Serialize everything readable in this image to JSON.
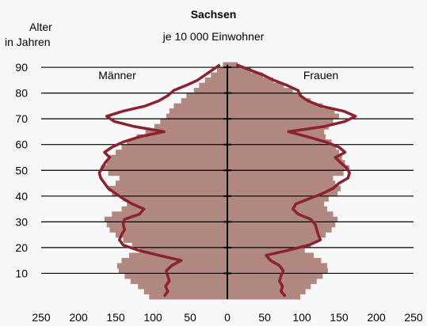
{
  "chart_data": {
    "type": "bar",
    "title": "Sachsen",
    "subtitle": "je 10 000 Einwohner",
    "ylabel_line1": "Alter",
    "ylabel_line2": "in Jahren",
    "left_label": "Männer",
    "right_label": "Frauen",
    "y_ticks": [
      10,
      20,
      30,
      40,
      50,
      60,
      70,
      80,
      90
    ],
    "x_ticks_left": [
      250,
      200,
      150,
      100,
      50,
      0
    ],
    "x_ticks_right": [
      50,
      100,
      150,
      200,
      250
    ],
    "xlim": [
      -250,
      250
    ],
    "ylim": [
      0,
      91
    ],
    "colors": {
      "bars": "#b08880",
      "line": "#8b2230",
      "background": "#f8f8f8",
      "axis": "#000000"
    },
    "series": [
      {
        "side": "male_bars",
        "age": [
          0,
          2,
          4,
          6,
          8,
          10,
          12,
          14,
          16,
          18,
          20,
          22,
          24,
          26,
          28,
          30,
          32,
          34,
          36,
          38,
          40,
          42,
          44,
          46,
          48,
          50,
          52,
          54,
          56,
          58,
          60,
          62,
          64,
          66,
          68,
          70,
          72,
          74,
          76,
          78,
          80,
          82,
          84,
          86,
          88,
          90
        ],
        "values": [
          105,
          112,
          120,
          130,
          138,
          146,
          148,
          142,
          132,
          118,
          128,
          140,
          150,
          158,
          162,
          165,
          155,
          142,
          135,
          140,
          155,
          160,
          150,
          145,
          160,
          170,
          162,
          158,
          150,
          142,
          135,
          122,
          110,
          98,
          90,
          82,
          78,
          72,
          62,
          55,
          45,
          38,
          30,
          22,
          14,
          6
        ]
      },
      {
        "side": "female_bars",
        "age": [
          0,
          2,
          4,
          6,
          8,
          10,
          12,
          14,
          16,
          18,
          20,
          22,
          24,
          26,
          28,
          30,
          32,
          34,
          36,
          38,
          40,
          42,
          44,
          46,
          48,
          50,
          52,
          54,
          56,
          58,
          60,
          62,
          64,
          66,
          68,
          70,
          72,
          74,
          76,
          78,
          80,
          82,
          84,
          86,
          88,
          90
        ],
        "values": [
          98,
          105,
          112,
          120,
          128,
          135,
          134,
          126,
          116,
          104,
          112,
          122,
          132,
          140,
          145,
          148,
          142,
          134,
          130,
          136,
          148,
          152,
          145,
          142,
          156,
          164,
          158,
          154,
          150,
          146,
          140,
          132,
          130,
          136,
          142,
          150,
          144,
          128,
          112,
          100,
          88,
          76,
          62,
          48,
          32,
          14
        ]
      },
      {
        "side": "male_line",
        "age": [
          0,
          2,
          4,
          6,
          8,
          10,
          12,
          14,
          16,
          18,
          20,
          22,
          24,
          26,
          28,
          30,
          32,
          34,
          36,
          38,
          40,
          42,
          44,
          46,
          48,
          50,
          52,
          54,
          56,
          58,
          60,
          62,
          64,
          66,
          68,
          70,
          72,
          74,
          76,
          78,
          80,
          82,
          84,
          86,
          88,
          90
        ],
        "values": [
          85,
          80,
          83,
          78,
          80,
          82,
          75,
          62,
          92,
          120,
          140,
          145,
          142,
          138,
          140,
          138,
          118,
          112,
          128,
          140,
          150,
          160,
          165,
          170,
          172,
          168,
          164,
          158,
          165,
          155,
          140,
          118,
          85,
          125,
          152,
          162,
          140,
          110,
          92,
          80,
          72,
          55,
          40,
          30,
          20,
          10
        ]
      },
      {
        "side": "female_line",
        "age": [
          0,
          2,
          4,
          6,
          8,
          10,
          12,
          14,
          16,
          18,
          20,
          22,
          24,
          26,
          28,
          30,
          32,
          34,
          36,
          38,
          40,
          42,
          44,
          46,
          48,
          50,
          52,
          54,
          56,
          58,
          60,
          62,
          64,
          66,
          68,
          70,
          72,
          74,
          76,
          78,
          80,
          82,
          84,
          86,
          88,
          90
        ],
        "values": [
          78,
          72,
          74,
          70,
          72,
          75,
          70,
          58,
          52,
          82,
          110,
          125,
          122,
          120,
          118,
          112,
          95,
          88,
          92,
          110,
          128,
          142,
          150,
          162,
          164,
          160,
          152,
          145,
          158,
          150,
          132,
          108,
          82,
          130,
          158,
          172,
          156,
          125,
          108,
          98,
          95,
          80,
          62,
          48,
          30,
          12
        ]
      }
    ]
  }
}
